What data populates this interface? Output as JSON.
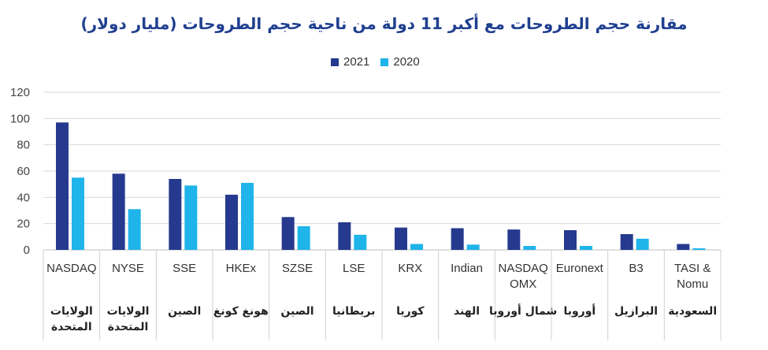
{
  "chart_data": {
    "type": "bar",
    "title": "مقارنة حجم الطروحات مع أكبر 11 دولة من ناحية حجم الطروحات (مليار دولار)",
    "xlabel": "",
    "ylabel": "",
    "ylim": [
      0,
      120
    ],
    "yticks": [
      "0",
      "20",
      "40",
      "60",
      "80",
      "100",
      "120"
    ],
    "grid": true,
    "legend_position": "top-center",
    "categories": [
      {
        "exchange": [
          "NASDAQ"
        ],
        "country": [
          "الولايات",
          "المتحدة"
        ]
      },
      {
        "exchange": [
          "NYSE"
        ],
        "country": [
          "الولايات",
          "المتحدة"
        ]
      },
      {
        "exchange": [
          "SSE"
        ],
        "country": [
          "الصين"
        ]
      },
      {
        "exchange": [
          "HKEx"
        ],
        "country": [
          "هونغ كونغ"
        ]
      },
      {
        "exchange": [
          "SZSE"
        ],
        "country": [
          "الصين"
        ]
      },
      {
        "exchange": [
          "LSE"
        ],
        "country": [
          "بريطانيا"
        ]
      },
      {
        "exchange": [
          "KRX"
        ],
        "country": [
          "كوريا"
        ]
      },
      {
        "exchange": [
          "Indian"
        ],
        "country": [
          "الهند"
        ]
      },
      {
        "exchange": [
          "NASDAQ",
          "OMX"
        ],
        "country": [
          "شمال أوروبا"
        ]
      },
      {
        "exchange": [
          "Euronext"
        ],
        "country": [
          "أوروبا"
        ]
      },
      {
        "exchange": [
          "B3"
        ],
        "country": [
          "البرازيل"
        ]
      },
      {
        "exchange": [
          "TASI &",
          "Nomu"
        ],
        "country": [
          "السعودية"
        ]
      }
    ],
    "series": [
      {
        "name": "2021",
        "color": "#253a8e",
        "values": [
          97,
          58,
          54,
          42,
          25,
          21,
          17,
          16.5,
          15.5,
          15,
          12,
          4.5
        ]
      },
      {
        "name": "2020",
        "color": "#1fb4ea",
        "values": [
          55,
          31,
          49,
          51,
          18,
          11.5,
          4.5,
          4,
          3,
          3,
          8.5,
          1.2
        ]
      }
    ]
  }
}
